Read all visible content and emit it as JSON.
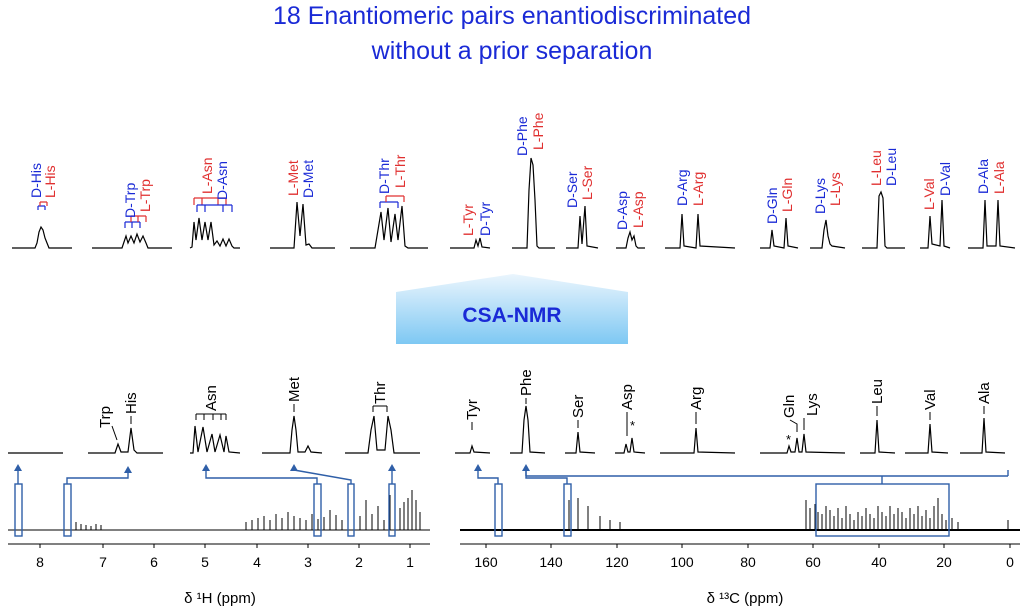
{
  "title": {
    "line1": "18 Enantiomeric pairs enantiodiscriminated",
    "line2": "without a prior separation"
  },
  "method_label": "CSA-NMR",
  "colors": {
    "d_label": "#1a2ad6",
    "l_label": "#e03030",
    "frame": "#2f5fa8",
    "title": "#1a2ad6",
    "arrow_band_top": "#eaf5fd",
    "arrow_band_bottom": "#7ec8f3"
  },
  "enantiomer_pairs_1h": [
    {
      "d": "D-His",
      "l": "L-His"
    },
    {
      "d": "D-Trp",
      "l": "L-Trp"
    },
    {
      "l": "L-Asn",
      "d": "D-Asn"
    },
    {
      "l": "L-Met",
      "d": "D-Met"
    },
    {
      "d": "D-Thr",
      "l": "L-Thr"
    }
  ],
  "enantiomer_pairs_13c": [
    {
      "l": "L-Tyr",
      "d": "D-Tyr"
    },
    {
      "d": "D-Phe",
      "l": "L-Phe"
    },
    {
      "d": "D-Ser",
      "l": "L-Ser"
    },
    {
      "d": "D-Asp",
      "l": "L-Asp"
    },
    {
      "d": "D-Arg",
      "l": "L-Arg"
    },
    {
      "d": "D-Gln",
      "l": "L-Gln"
    },
    {
      "d": "D-Lys",
      "l": "L-Lys"
    },
    {
      "l": "L-Leu",
      "d": "D-Leu"
    },
    {
      "l": "L-Val",
      "d": "D-Val"
    },
    {
      "d": "D-Ala",
      "l": "L-Ala"
    }
  ],
  "amino_acids_1h": [
    "Trp",
    "His",
    "Asn",
    "Met",
    "Thr"
  ],
  "amino_acids_13c": [
    "Tyr",
    "Phe",
    "Ser",
    "Asp",
    "Arg",
    "Gln",
    "Lys",
    "Leu",
    "Val",
    "Ala"
  ],
  "impurity_mark": "*",
  "axis_1h": {
    "label": "δ ¹H (ppm)",
    "ticks": [
      "8",
      "7",
      "6",
      "5",
      "4",
      "3",
      "2",
      "1"
    ]
  },
  "axis_13c": {
    "label": "δ ¹³C (ppm)",
    "ticks": [
      "160",
      "140",
      "120",
      "100",
      "80",
      "60",
      "40",
      "20",
      "0"
    ]
  }
}
